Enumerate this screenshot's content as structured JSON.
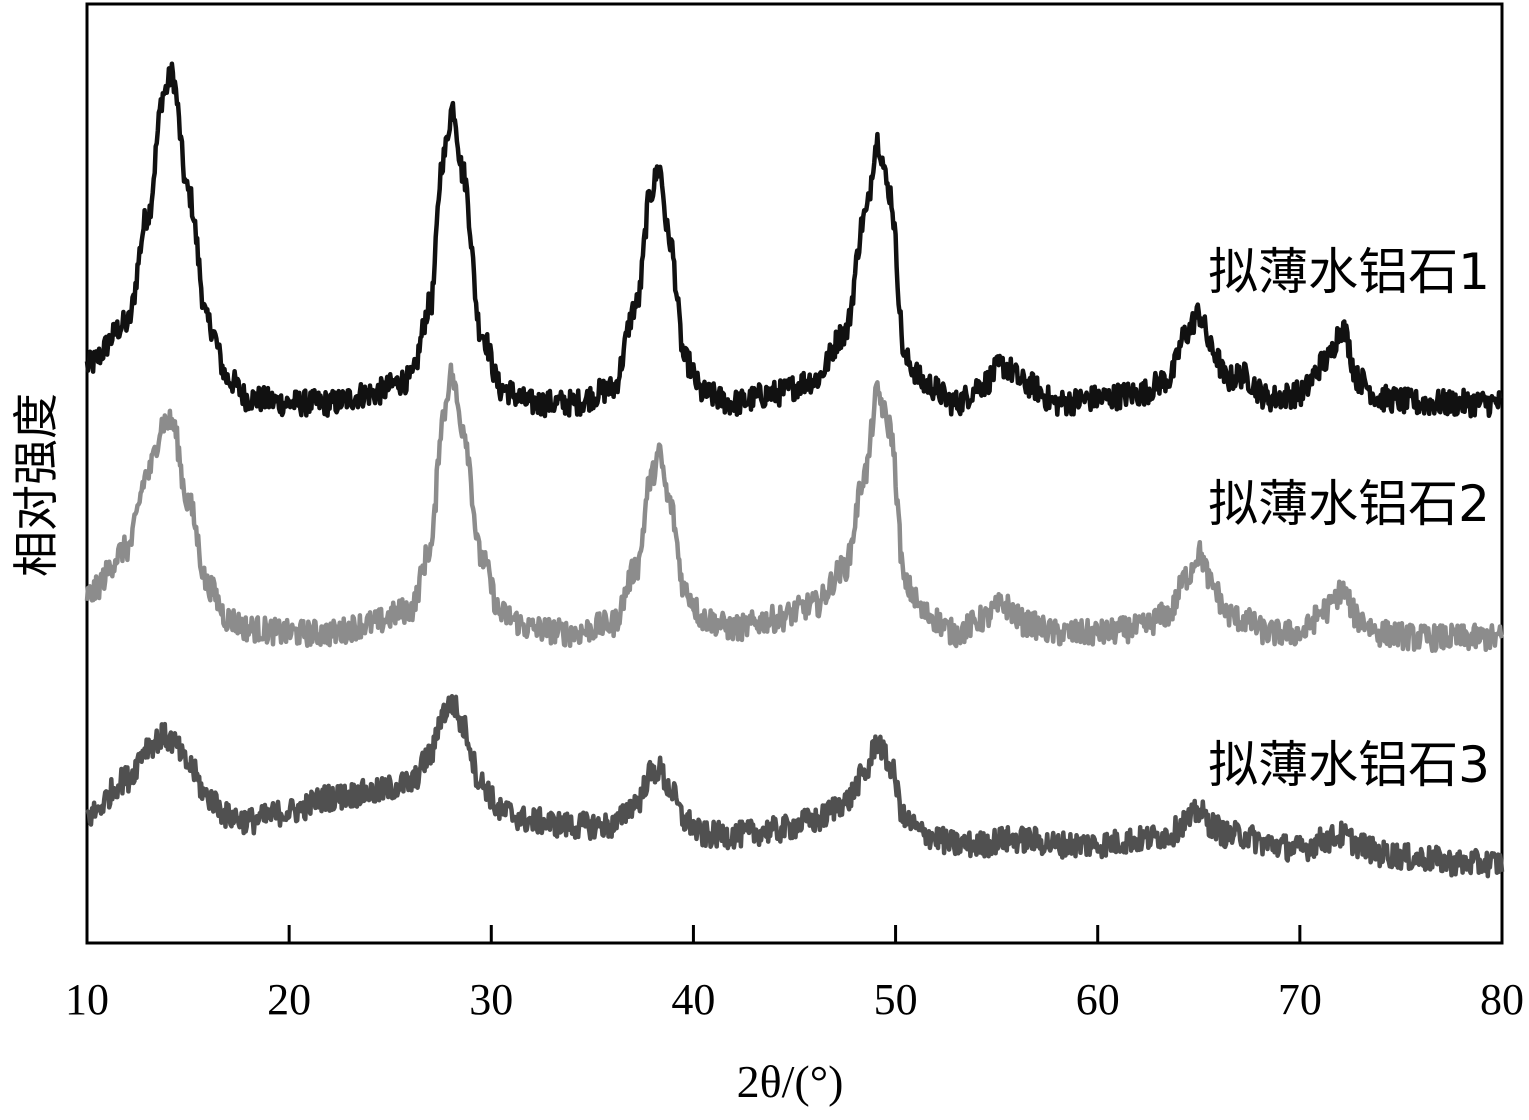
{
  "chart_data": {
    "type": "line",
    "title": "",
    "xlabel": "2θ/(°)",
    "ylabel": "相对强度",
    "xlim": [
      10,
      80
    ],
    "ylim": [
      0,
      1
    ],
    "x_ticks": [
      10,
      20,
      30,
      40,
      50,
      60,
      70,
      80
    ],
    "y_ticks": [],
    "grid": false,
    "legend": "none (series labeled inline to the right of each curve)",
    "series": [
      {
        "name": "拟薄水铝石1",
        "color": "#111111",
        "x": [
          10,
          12,
          13,
          13.8,
          14.2,
          15,
          16,
          17,
          18,
          20,
          22,
          24,
          26,
          27,
          27.6,
          28.1,
          28.6,
          29.5,
          30.5,
          32,
          34,
          36,
          37.2,
          37.9,
          38.3,
          38.8,
          39.6,
          40.5,
          42,
          44,
          46,
          47.5,
          48.5,
          49.1,
          49.7,
          50.5,
          51.5,
          53,
          54.3,
          55.3,
          56.5,
          58,
          60,
          62,
          63.5,
          64.4,
          65,
          65.7,
          66.4,
          67.1,
          68.5,
          70,
          71.3,
          72.1,
          72.9,
          74,
          76,
          78,
          80
        ],
        "y": [
          0.615,
          0.66,
          0.775,
          0.905,
          0.925,
          0.8,
          0.66,
          0.6,
          0.58,
          0.575,
          0.575,
          0.585,
          0.6,
          0.68,
          0.835,
          0.89,
          0.82,
          0.65,
          0.59,
          0.575,
          0.575,
          0.59,
          0.68,
          0.8,
          0.825,
          0.75,
          0.62,
          0.585,
          0.575,
          0.585,
          0.6,
          0.65,
          0.775,
          0.855,
          0.8,
          0.62,
          0.595,
          0.575,
          0.595,
          0.615,
          0.595,
          0.575,
          0.58,
          0.585,
          0.6,
          0.65,
          0.67,
          0.63,
          0.6,
          0.605,
          0.58,
          0.585,
          0.62,
          0.655,
          0.6,
          0.58,
          0.575,
          0.575,
          0.575
        ]
      },
      {
        "name": "拟薄水铝石2",
        "color": "#8c8c8c",
        "x": [
          10,
          12,
          13,
          13.8,
          14.2,
          15,
          16,
          17,
          18,
          20,
          22,
          24,
          26,
          27,
          27.6,
          28,
          28.6,
          29.5,
          30.5,
          32,
          34,
          36,
          37.2,
          37.9,
          38.3,
          38.8,
          39.6,
          40.5,
          42,
          44,
          46,
          47.5,
          48.5,
          49.1,
          49.7,
          50.5,
          51.5,
          53,
          54.3,
          55.3,
          56.5,
          58,
          60,
          62,
          63.5,
          64.4,
          65,
          65.7,
          66.4,
          67.1,
          68.5,
          70,
          71.3,
          72.1,
          72.9,
          74,
          76,
          78,
          80
        ],
        "y": [
          0.37,
          0.42,
          0.5,
          0.555,
          0.555,
          0.47,
          0.38,
          0.345,
          0.335,
          0.33,
          0.33,
          0.34,
          0.355,
          0.42,
          0.56,
          0.605,
          0.55,
          0.41,
          0.35,
          0.335,
          0.33,
          0.34,
          0.4,
          0.495,
          0.52,
          0.47,
          0.375,
          0.345,
          0.335,
          0.345,
          0.36,
          0.4,
          0.5,
          0.585,
          0.55,
          0.38,
          0.35,
          0.33,
          0.345,
          0.36,
          0.34,
          0.33,
          0.33,
          0.335,
          0.35,
          0.39,
          0.415,
          0.38,
          0.35,
          0.345,
          0.33,
          0.33,
          0.355,
          0.375,
          0.345,
          0.33,
          0.325,
          0.325,
          0.325
        ]
      },
      {
        "name": "拟薄水铝石3",
        "color": "#505050",
        "x": [
          10,
          12,
          13,
          13.8,
          14.2,
          15,
          16,
          17,
          18,
          20,
          22,
          24,
          26,
          27,
          27.6,
          28.1,
          28.6,
          29.5,
          30.5,
          32,
          34,
          36,
          37.2,
          37.9,
          38.3,
          38.8,
          39.6,
          40.5,
          42,
          44,
          46,
          47.5,
          48.5,
          49.1,
          49.7,
          50.5,
          51.5,
          53,
          54.3,
          55.3,
          56.5,
          58,
          60,
          62,
          63.5,
          64.4,
          65,
          65.7,
          66.4,
          67.1,
          68.5,
          70,
          71.3,
          72.1,
          72.9,
          74,
          76,
          78,
          80
        ],
        "y": [
          0.135,
          0.175,
          0.21,
          0.22,
          0.215,
          0.19,
          0.155,
          0.135,
          0.13,
          0.14,
          0.155,
          0.16,
          0.17,
          0.2,
          0.245,
          0.255,
          0.23,
          0.17,
          0.14,
          0.13,
          0.125,
          0.125,
          0.15,
          0.18,
          0.185,
          0.165,
          0.13,
          0.115,
          0.115,
          0.12,
          0.13,
          0.15,
          0.18,
          0.215,
          0.19,
          0.13,
          0.115,
          0.105,
          0.105,
          0.11,
          0.11,
          0.105,
          0.105,
          0.11,
          0.115,
          0.13,
          0.14,
          0.125,
          0.115,
          0.115,
          0.105,
          0.1,
          0.11,
          0.115,
          0.105,
          0.095,
          0.09,
          0.085,
          0.085
        ]
      }
    ]
  }
}
